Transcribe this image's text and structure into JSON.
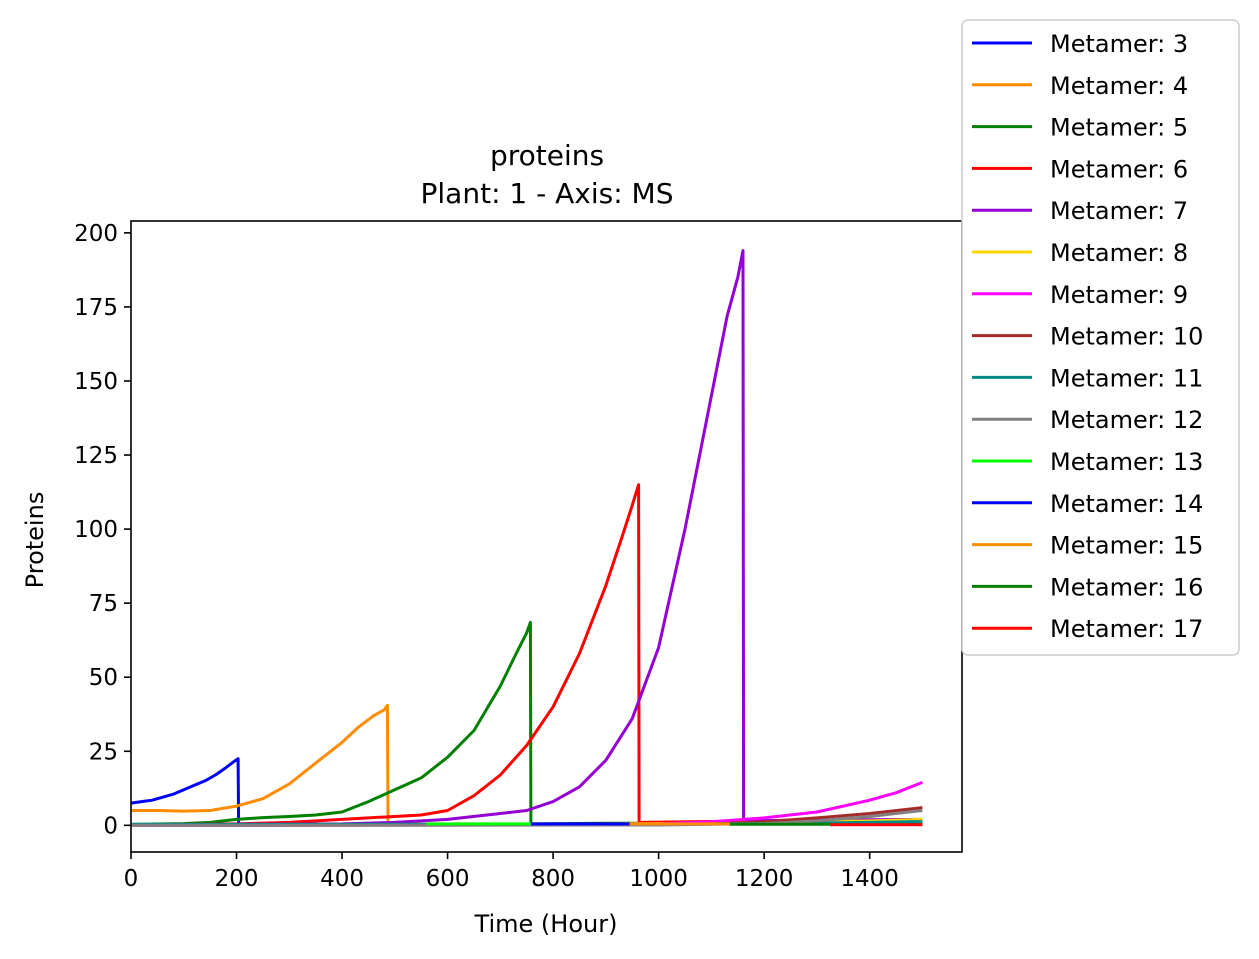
{
  "chart_data": {
    "type": "line",
    "title": "proteins",
    "subtitle": "Plant: 1 - Axis: MS",
    "xlabel": "Time (Hour)",
    "ylabel": "Proteins",
    "xlim": [
      0,
      1575
    ],
    "ylim": [
      -9,
      204
    ],
    "xticks": [
      0,
      200,
      400,
      600,
      800,
      1000,
      1200,
      1400
    ],
    "yticks": [
      0,
      25,
      50,
      75,
      100,
      125,
      150,
      175,
      200
    ],
    "grid": false,
    "legend_position": "outside-top-right",
    "series": [
      {
        "name": "Metamer: 3",
        "color": "#0000ff",
        "x": [
          0,
          20,
          40,
          60,
          80,
          100,
          120,
          140,
          160,
          180,
          195,
          203,
          204,
          220,
          300,
          370
        ],
        "y": [
          7.5,
          8,
          8.5,
          9.5,
          10.5,
          12,
          13.5,
          15,
          17,
          19.5,
          21.5,
          22.5,
          0.3,
          0.3,
          0.3,
          0.3
        ]
      },
      {
        "name": "Metamer: 4",
        "color": "#ff8c00",
        "x": [
          0,
          50,
          100,
          150,
          200,
          250,
          300,
          350,
          400,
          430,
          460,
          480,
          486,
          487,
          520,
          560
        ],
        "y": [
          5,
          5,
          4.8,
          5,
          6.5,
          9,
          14,
          21,
          28,
          33,
          37,
          39,
          40.5,
          0.4,
          0.4,
          0.4
        ]
      },
      {
        "name": "Metamer: 5",
        "color": "#008000",
        "x": [
          0,
          100,
          150,
          200,
          250,
          300,
          350,
          400,
          450,
          500,
          550,
          600,
          650,
          700,
          730,
          750,
          757,
          758,
          900,
          1100,
          1300,
          1500
        ],
        "y": [
          0.3,
          0.6,
          1,
          2,
          2.6,
          3,
          3.5,
          4.5,
          8,
          12,
          16,
          23,
          32,
          47,
          58,
          65,
          68.5,
          0.5,
          0.7,
          0.8,
          0.9,
          1
        ]
      },
      {
        "name": "Metamer: 6",
        "color": "#ff0000",
        "x": [
          0,
          200,
          300,
          400,
          450,
          500,
          550,
          600,
          650,
          700,
          750,
          800,
          850,
          900,
          930,
          950,
          962,
          963,
          1100,
          1300,
          1500
        ],
        "y": [
          0.2,
          0.5,
          1,
          2,
          2.5,
          3,
          3.5,
          5,
          10,
          17,
          27,
          40,
          58,
          81,
          97,
          108,
          115,
          1,
          1.3,
          1.6,
          1.9
        ]
      },
      {
        "name": "Metamer: 7",
        "color": "#9400d3",
        "x": [
          0,
          400,
          500,
          600,
          700,
          750,
          800,
          850,
          900,
          950,
          1000,
          1050,
          1100,
          1130,
          1150,
          1160,
          1161,
          1300,
          1500
        ],
        "y": [
          0.2,
          0.5,
          1,
          2,
          4,
          5,
          8,
          13,
          22,
          36,
          60,
          100,
          145,
          172,
          185,
          194,
          1.5,
          1.8,
          2
        ]
      },
      {
        "name": "Metamer: 8",
        "color": "#ffd700",
        "x": [
          0,
          600,
          800,
          1000,
          1200,
          1400,
          1500
        ],
        "y": [
          0,
          0.1,
          0.3,
          0.6,
          1,
          1.5,
          2
        ]
      },
      {
        "name": "Metamer: 9",
        "color": "#ff00ff",
        "x": [
          0,
          800,
          1000,
          1100,
          1200,
          1300,
          1350,
          1400,
          1450,
          1500
        ],
        "y": [
          0,
          0.1,
          0.5,
          1.2,
          2.5,
          4.5,
          6.5,
          8.5,
          11,
          14.5
        ]
      },
      {
        "name": "Metamer: 10",
        "color": "#a52a2a",
        "x": [
          0,
          900,
          1100,
          1200,
          1300,
          1400,
          1500
        ],
        "y": [
          0,
          0.1,
          0.5,
          1.2,
          2.5,
          4,
          6
        ]
      },
      {
        "name": "Metamer: 11",
        "color": "#008b8b",
        "x": [
          0,
          1000,
          1200,
          1300,
          1400,
          1500
        ],
        "y": [
          0.3,
          0.4,
          0.6,
          0.8,
          1,
          1.3
        ]
      },
      {
        "name": "Metamer: 12",
        "color": "#808080",
        "x": [
          0,
          1000,
          1200,
          1300,
          1400,
          1500
        ],
        "y": [
          0,
          0.1,
          0.6,
          1.5,
          3,
          5
        ]
      },
      {
        "name": "Metamer: 13",
        "color": "#00ff00",
        "x": [
          560,
          758
        ],
        "y": [
          0.5,
          0.5
        ]
      },
      {
        "name": "Metamer: 14",
        "color": "#0000ff",
        "x": [
          758,
          945
        ],
        "y": [
          0.5,
          0.5
        ]
      },
      {
        "name": "Metamer: 15",
        "color": "#ff8c00",
        "x": [
          945,
          1135
        ],
        "y": [
          0.5,
          0.5
        ]
      },
      {
        "name": "Metamer: 16",
        "color": "#008000",
        "x": [
          1135,
          1325
        ],
        "y": [
          0.4,
          0.4
        ]
      },
      {
        "name": "Metamer: 17",
        "color": "#ff0000",
        "x": [
          1325,
          1500
        ],
        "y": [
          0.2,
          0.2
        ]
      }
    ]
  }
}
